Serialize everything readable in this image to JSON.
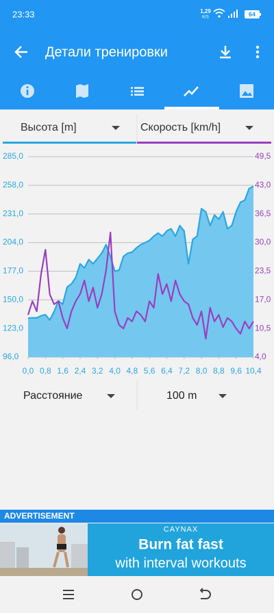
{
  "status_bar": {
    "time": "23:33",
    "speed": "1,29",
    "speed_unit": "K/S",
    "battery": "64"
  },
  "app_bar": {
    "title": "Детали тренировки"
  },
  "chart_data": {
    "type": "line",
    "x": [
      0,
      0.2,
      0.4,
      0.6,
      0.8,
      1.0,
      1.2,
      1.4,
      1.6,
      1.8,
      2.0,
      2.2,
      2.4,
      2.6,
      2.8,
      3.0,
      3.2,
      3.4,
      3.6,
      3.8,
      4.0,
      4.2,
      4.4,
      4.6,
      4.8,
      5.0,
      5.2,
      5.4,
      5.6,
      5.8,
      6.0,
      6.2,
      6.4,
      6.6,
      6.8,
      7.0,
      7.2,
      7.4,
      7.6,
      7.8,
      8.0,
      8.2,
      8.4,
      8.6,
      8.8,
      9.0,
      9.2,
      9.4,
      9.6,
      9.8,
      10.0,
      10.2,
      10.4
    ],
    "series": [
      {
        "name": "Высота [m]",
        "color": "#2aa7df",
        "fill": "#74c7ef",
        "area": true,
        "values": [
          132.8,
          133,
          133,
          135,
          136,
          131,
          139,
          149,
          146,
          162,
          165,
          171,
          184,
          180,
          188,
          184,
          189,
          194,
          202,
          191,
          177,
          178,
          191,
          194,
          195,
          199,
          202,
          204,
          206,
          210,
          213,
          210,
          215,
          217,
          210,
          220,
          215,
          184,
          207,
          210,
          236,
          233,
          220,
          230,
          226,
          233,
          217,
          220,
          233,
          242,
          244,
          255,
          257
        ]
      },
      {
        "name": "Скорость [km/h]",
        "color": "#9a3fbf",
        "axis": "y2",
        "values": [
          13.6,
          16.7,
          14.4,
          22.9,
          28.4,
          18.3,
          16.0,
          16.7,
          12.9,
          10.5,
          14.4,
          16.7,
          18.3,
          21.4,
          16.7,
          19.8,
          15.2,
          18.3,
          23.7,
          32.3,
          14.4,
          11.3,
          10.5,
          12.9,
          12.1,
          14.4,
          13.6,
          12.1,
          16.7,
          15.2,
          22.9,
          18.3,
          20.6,
          16.7,
          21.4,
          18.3,
          16.7,
          16.0,
          12.9,
          11.3,
          14.4,
          8.2,
          15.2,
          12.1,
          13.6,
          10.8,
          12.9,
          12.1,
          10.5,
          9.3,
          12.1,
          10.5,
          12.1
        ]
      }
    ],
    "xlim": [
      0,
      10.4
    ],
    "xticks": [
      {
        "value": 0,
        "label": "0,0"
      },
      {
        "value": 0.8,
        "label": "0,8"
      },
      {
        "value": 1.6,
        "label": "1,6"
      },
      {
        "value": 2.4,
        "label": "2,4"
      },
      {
        "value": 3.2,
        "label": "3,2"
      },
      {
        "value": 4.0,
        "label": "4,0"
      },
      {
        "value": 4.8,
        "label": "4,8"
      },
      {
        "value": 5.6,
        "label": "5,6"
      },
      {
        "value": 6.4,
        "label": "6,4"
      },
      {
        "value": 7.2,
        "label": "7,2"
      },
      {
        "value": 8.0,
        "label": "8,0"
      },
      {
        "value": 8.8,
        "label": "8,8"
      },
      {
        "value": 9.6,
        "label": "9,6"
      },
      {
        "value": 10.4,
        "label": "10,4"
      }
    ],
    "ylim": [
      96,
      285
    ],
    "yticks": [
      {
        "value": 96,
        "label": "96,0"
      },
      {
        "value": 123,
        "label": "123,0"
      },
      {
        "value": 150,
        "label": "150,0"
      },
      {
        "value": 177,
        "label": "177,0"
      },
      {
        "value": 204,
        "label": "204,0"
      },
      {
        "value": 231,
        "label": "231,0"
      },
      {
        "value": 258,
        "label": "258,0"
      },
      {
        "value": 285,
        "label": "285,0"
      }
    ],
    "y2lim": [
      4,
      49.5
    ],
    "y2ticks": [
      {
        "value": 4,
        "label": "4,0"
      },
      {
        "value": 10.5,
        "label": "10,5"
      },
      {
        "value": 17,
        "label": "17,0"
      },
      {
        "value": 23.5,
        "label": "23,5"
      },
      {
        "value": 30,
        "label": "30,0"
      },
      {
        "value": 36.5,
        "label": "36,5"
      },
      {
        "value": 43,
        "label": "43,0"
      },
      {
        "value": 49.5,
        "label": "49,5"
      }
    ],
    "grid": true
  },
  "bottom_selectors": {
    "x_axis": "Расстояние",
    "interval": "100 m"
  },
  "ad": {
    "label": "ADVERTISEMENT",
    "brand": "CAYNAX",
    "headline": "Burn fat fast",
    "subline": "with interval workouts"
  }
}
